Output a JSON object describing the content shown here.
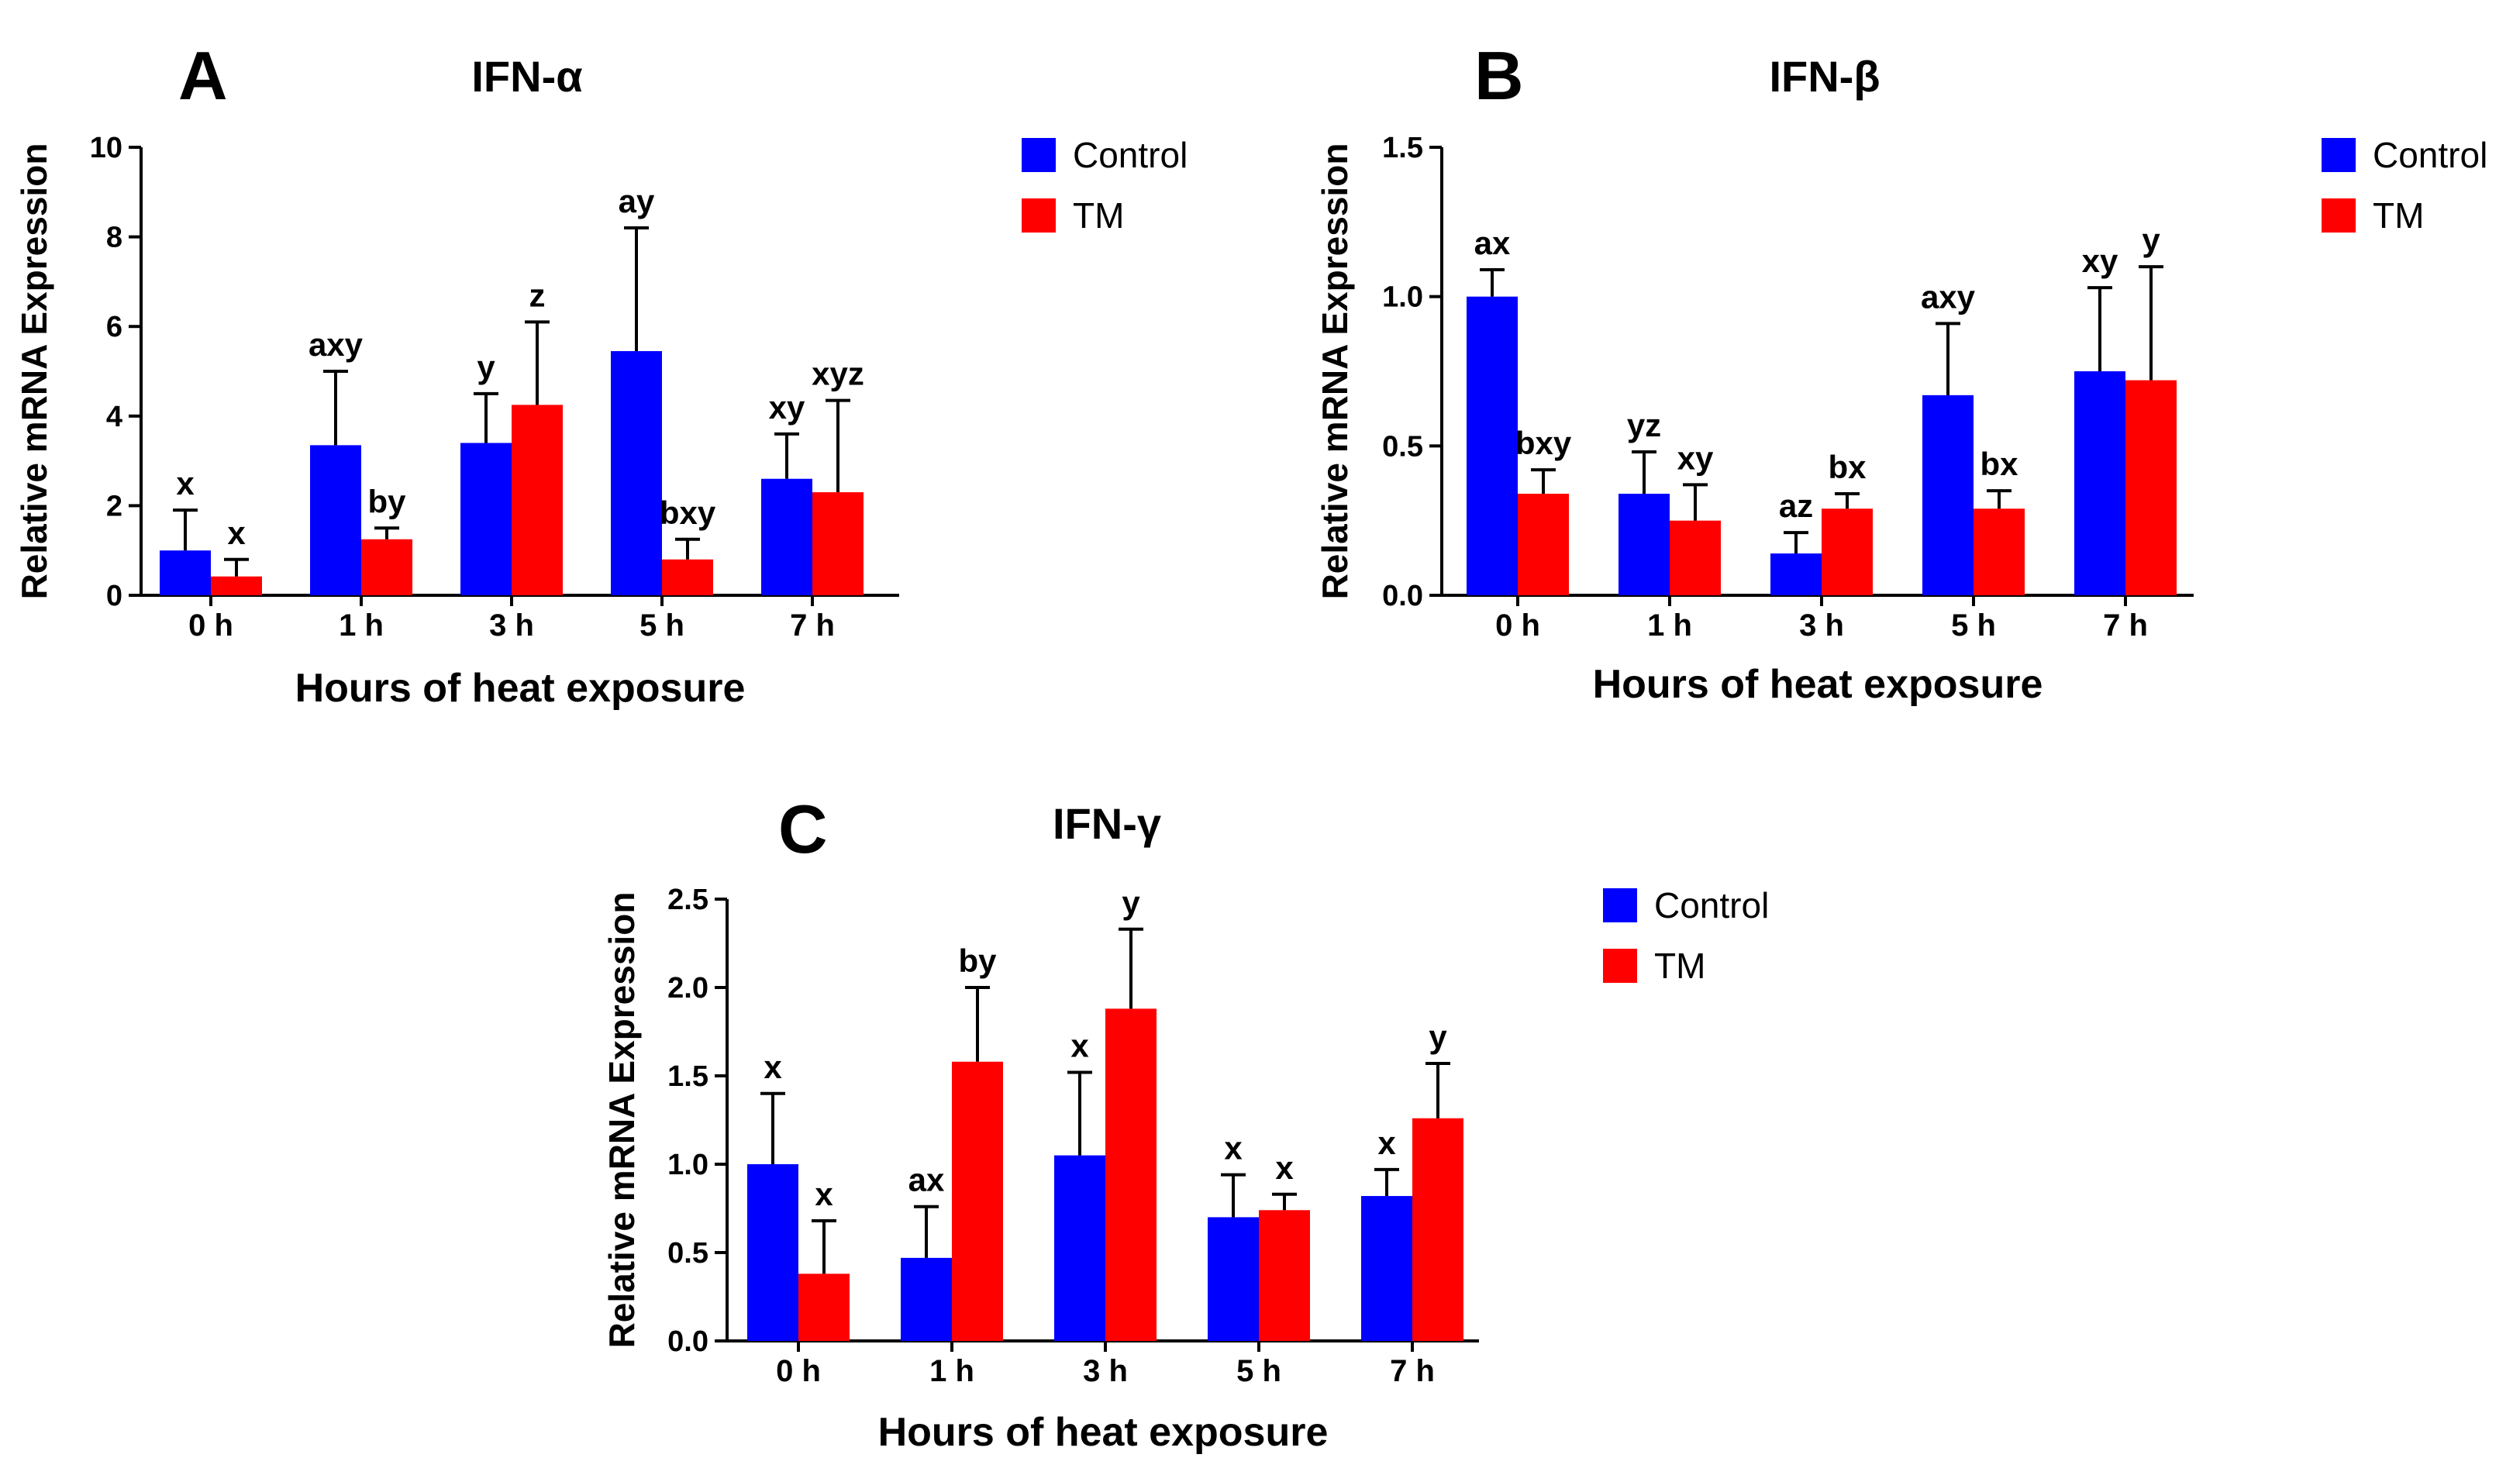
{
  "colors": {
    "control": "#0000ff",
    "tm": "#ff0000",
    "axis": "#000000"
  },
  "chart_data": [
    {
      "type": "bar",
      "panel": "A",
      "title": "IFN-α",
      "xlabel": "Hours of heat exposure",
      "ylabel": "Relative mRNA Expression",
      "ylim": [
        0,
        10
      ],
      "yticks": [
        "0",
        "2",
        "4",
        "6",
        "8",
        "10"
      ],
      "categories": [
        "0 h",
        "1 h",
        "3 h",
        "5 h",
        "7 h"
      ],
      "series": [
        {
          "name": "Control",
          "values": [
            1.0,
            3.35,
            3.4,
            5.45,
            2.6
          ],
          "errors": [
            0.9,
            1.65,
            1.1,
            2.75,
            1.0
          ],
          "labels": [
            "x",
            "axy",
            "y",
            "ay",
            "xy"
          ]
        },
        {
          "name": "TM",
          "values": [
            0.42,
            1.25,
            4.25,
            0.8,
            2.3
          ],
          "errors": [
            0.38,
            0.25,
            1.85,
            0.45,
            2.05
          ],
          "labels": [
            "x",
            "by",
            "z",
            "bxy",
            "xyz"
          ]
        }
      ],
      "legend": [
        "Control",
        "TM"
      ]
    },
    {
      "type": "bar",
      "panel": "B",
      "title": "IFN-β",
      "xlabel": "Hours of heat exposure",
      "ylabel": "Relative mRNA Expression",
      "ylim": [
        0,
        1.5
      ],
      "yticks": [
        "0.0",
        "0.5",
        "1.0",
        "1.5"
      ],
      "categories": [
        "0 h",
        "1 h",
        "3 h",
        "5 h",
        "7 h"
      ],
      "series": [
        {
          "name": "Control",
          "values": [
            1.0,
            0.34,
            0.14,
            0.67,
            0.75
          ],
          "errors": [
            0.09,
            0.14,
            0.07,
            0.24,
            0.28
          ],
          "labels": [
            "ax",
            "yz",
            "az",
            "axy",
            "xy"
          ]
        },
        {
          "name": "TM",
          "values": [
            0.34,
            0.25,
            0.29,
            0.29,
            0.72
          ],
          "errors": [
            0.08,
            0.12,
            0.05,
            0.06,
            0.38
          ],
          "labels": [
            "bxy",
            "xy",
            "bx",
            "bx",
            "y"
          ]
        }
      ],
      "legend": [
        "Control",
        "TM"
      ]
    },
    {
      "type": "bar",
      "panel": "C",
      "title": "IFN-γ",
      "xlabel": "Hours of heat exposure",
      "ylabel": "Relative mRNA Expression",
      "ylim": [
        0,
        2.5
      ],
      "yticks": [
        "0.0",
        "0.5",
        "1.0",
        "1.5",
        "2.0",
        "2.5"
      ],
      "categories": [
        "0 h",
        "1 h",
        "3 h",
        "5 h",
        "7 h"
      ],
      "series": [
        {
          "name": "Control",
          "values": [
            1.0,
            0.47,
            1.05,
            0.7,
            0.82
          ],
          "errors": [
            0.4,
            0.29,
            0.47,
            0.24,
            0.15
          ],
          "labels": [
            "x",
            "ax",
            "x",
            "x",
            "x"
          ]
        },
        {
          "name": "TM",
          "values": [
            0.38,
            1.58,
            1.88,
            0.74,
            1.26
          ],
          "errors": [
            0.3,
            0.42,
            0.45,
            0.09,
            0.31
          ],
          "labels": [
            "x",
            "by",
            "y",
            "x",
            "y"
          ]
        }
      ],
      "legend": [
        "Control",
        "TM"
      ]
    }
  ]
}
